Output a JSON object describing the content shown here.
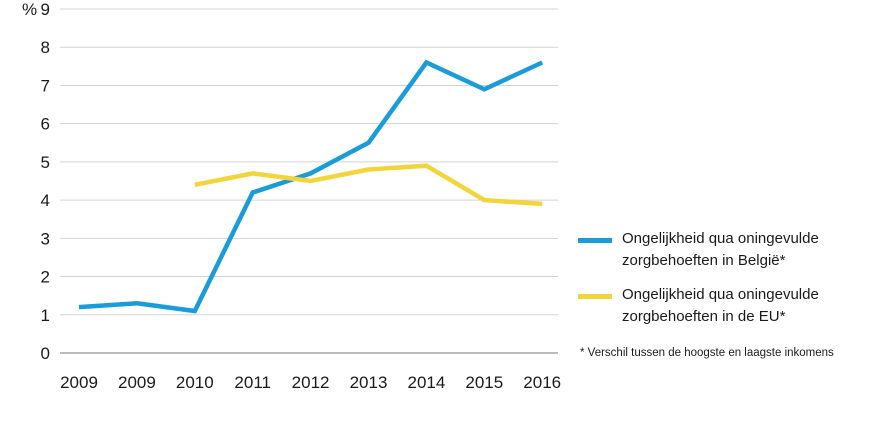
{
  "chart_data": {
    "type": "line",
    "y_unit": "%",
    "ylim": [
      0,
      9
    ],
    "yticks": [
      0,
      1,
      2,
      3,
      4,
      5,
      6,
      7,
      8,
      9
    ],
    "categories": [
      "2009",
      "2009",
      "2010",
      "2011",
      "2012",
      "2013",
      "2014",
      "2015",
      "2016"
    ],
    "grid": true,
    "series": [
      {
        "name": "Ongelijkheid qua oningevulde zorgbehoeften in België*",
        "color": "#1a9cd8",
        "values": [
          1.2,
          1.3,
          1.1,
          4.2,
          4.7,
          5.5,
          7.6,
          6.9,
          7.6
        ]
      },
      {
        "name": "Ongelijkheid qua oningevulde zorgbehoeften in de EU*",
        "color": "#f2d43b",
        "values": [
          null,
          null,
          4.4,
          4.7,
          4.5,
          4.8,
          4.9,
          4.0,
          3.9
        ]
      }
    ],
    "legend_position": "right",
    "footnote": "* Verschil tussen de hoogste en laagste inkomens"
  }
}
